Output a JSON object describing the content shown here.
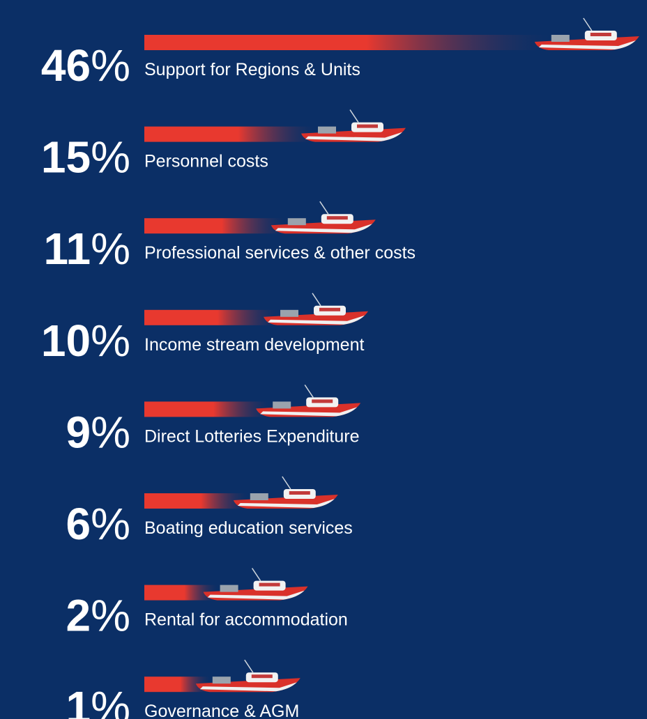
{
  "chart_data": {
    "type": "bar",
    "categories": [
      "Support for Regions & Units",
      "Personnel costs",
      "Professional services & other costs",
      "Income stream development",
      "Direct Lotteries Expenditure",
      "Boating education services",
      "Rental for accommodation",
      "Governance & AGM"
    ],
    "values": [
      46,
      15,
      11,
      10,
      9,
      6,
      2,
      1
    ],
    "value_labels": [
      "46%",
      "15%",
      "11%",
      "10%",
      "9%",
      "6%",
      "2%",
      "1%"
    ],
    "color": "#e8392f"
  }
}
